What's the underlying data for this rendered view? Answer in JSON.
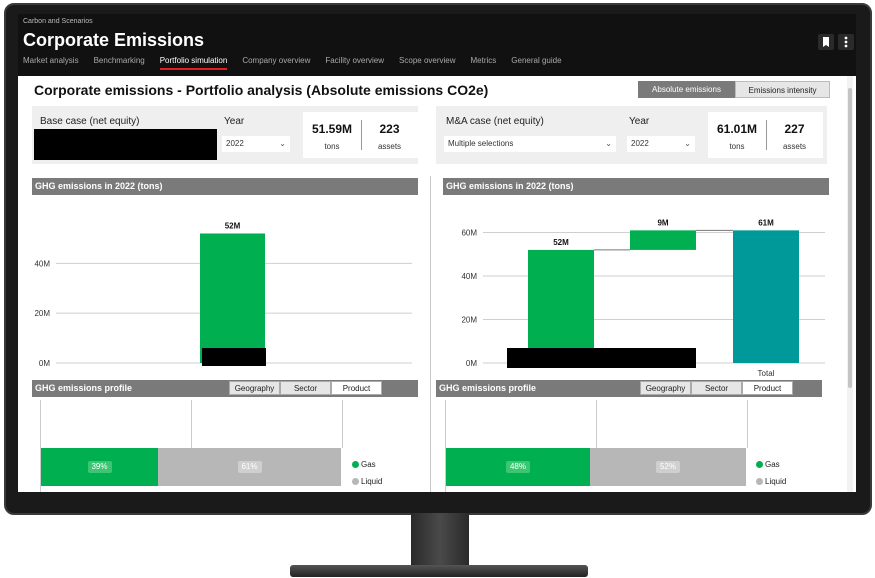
{
  "header": {
    "breadcrumb": "Carbon and Scenarios",
    "title": "Corporate Emissions",
    "nav": [
      {
        "label": "Market analysis",
        "active": false
      },
      {
        "label": "Benchmarking",
        "active": false
      },
      {
        "label": "Portfolio simulation",
        "active": true
      },
      {
        "label": "Company overview",
        "active": false
      },
      {
        "label": "Facility overview",
        "active": false
      },
      {
        "label": "Scope overview",
        "active": false
      },
      {
        "label": "Metrics",
        "active": false
      },
      {
        "label": "General guide",
        "active": false
      }
    ],
    "icons": [
      "bookmark-icon",
      "more-vertical-icon"
    ]
  },
  "page": {
    "title": "Corporate emissions - Portfolio analysis (Absolute emissions CO2e)",
    "toggle_active": "Absolute emissions",
    "toggle_inactive": "Emissions intensity"
  },
  "base_case": {
    "label": "Base case (net equity)",
    "year_label": "Year",
    "year_value": "2022",
    "kpi_value": "51.59M",
    "kpi_unit": "tons",
    "assets_value": "223",
    "assets_unit": "assets"
  },
  "ma_case": {
    "label": "M&A case (net equity)",
    "selection_value": "Multiple selections",
    "year_label": "Year",
    "year_value": "2022",
    "kpi_value": "61.01M",
    "kpi_unit": "tons",
    "assets_value": "227",
    "assets_unit": "assets"
  },
  "left_chart_title": "GHG emissions in 2022 (tons)",
  "right_chart_title": "GHG emissions in 2022 (tons)",
  "chart_data": [
    {
      "type": "bar",
      "title": "GHG emissions in 2022 (tons)",
      "categories": [
        ""
      ],
      "values": [
        52
      ],
      "data_labels": [
        "52M"
      ],
      "yticks": [
        "0M",
        "20M",
        "40M"
      ],
      "ylim": [
        0,
        55
      ],
      "colors": [
        "#00b050"
      ]
    },
    {
      "type": "bar",
      "title": "GHG emissions in 2022 (tons)",
      "subtype": "waterfall",
      "categories": [
        "",
        "",
        "Total"
      ],
      "values": [
        52,
        9,
        61
      ],
      "bases": [
        0,
        52,
        0
      ],
      "data_labels": [
        "52M",
        "9M",
        "61M"
      ],
      "yticks": [
        "0M",
        "20M",
        "40M",
        "60M"
      ],
      "ylim": [
        0,
        63
      ],
      "colors": [
        "#00b050",
        "#00b050",
        "#00999a"
      ]
    }
  ],
  "profile_left": {
    "title": "GHG emissions profile",
    "tabs": [
      "Geography",
      "Sector",
      "Product"
    ],
    "active_tab": "Product",
    "segments": [
      {
        "label": "39%",
        "share": 39,
        "color": "#00b050"
      },
      {
        "label": "61%",
        "share": 61,
        "color": "#b7b7b7"
      }
    ],
    "legend": [
      {
        "label": "Gas",
        "color": "#00b050"
      },
      {
        "label": "Liquid",
        "color": "#b7b7b7"
      }
    ]
  },
  "profile_right": {
    "title": "GHG emissions profile",
    "tabs": [
      "Geography",
      "Sector",
      "Product"
    ],
    "active_tab": "Product",
    "segments": [
      {
        "label": "48%",
        "share": 48,
        "color": "#00b050"
      },
      {
        "label": "52%",
        "share": 52,
        "color": "#b7b7b7"
      }
    ],
    "legend": [
      {
        "label": "Gas",
        "color": "#00b050"
      },
      {
        "label": "Liquid",
        "color": "#b7b7b7"
      }
    ]
  }
}
